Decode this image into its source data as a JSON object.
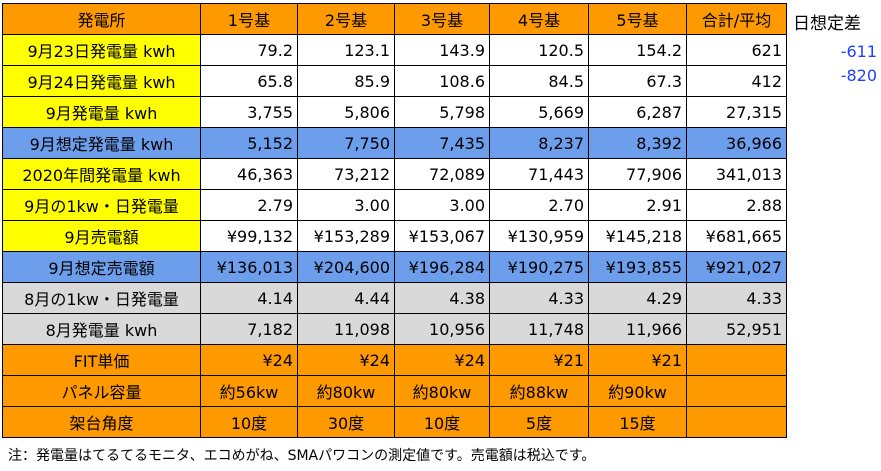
{
  "header": {
    "label": "発電所",
    "units": [
      "1号基",
      "2号基",
      "3号基",
      "4号基",
      "5号基"
    ],
    "total": "合計/平均"
  },
  "rows": [
    {
      "label": "9月23日発電量 kwh",
      "values": [
        "79.2",
        "123.1",
        "143.9",
        "120.5",
        "154.2"
      ],
      "total": "621"
    },
    {
      "label": "9月24日発電量 kwh",
      "values": [
        "65.8",
        "85.9",
        "108.6",
        "84.5",
        "67.3"
      ],
      "total": "412"
    },
    {
      "label": "9月発電量 kwh",
      "values": [
        "3,755",
        "5,806",
        "5,798",
        "5,669",
        "6,287"
      ],
      "total": "27,315"
    },
    {
      "label": "9月想定発電量 kwh",
      "values": [
        "5,152",
        "7,750",
        "7,435",
        "8,237",
        "8,392"
      ],
      "total": "36,966"
    },
    {
      "label": "2020年間発電量 kwh",
      "values": [
        "46,363",
        "73,212",
        "72,089",
        "71,443",
        "77,906"
      ],
      "total": "341,013"
    },
    {
      "label": "9月の1kw・日発電量",
      "values": [
        "2.79",
        "3.00",
        "3.00",
        "2.70",
        "2.91"
      ],
      "total": "2.88"
    },
    {
      "label": "9月売電額",
      "values": [
        "¥99,132",
        "¥153,289",
        "¥153,067",
        "¥130,959",
        "¥145,218"
      ],
      "total": "¥681,665"
    },
    {
      "label": "9月想定売電額",
      "values": [
        "¥136,013",
        "¥204,600",
        "¥196,284",
        "¥190,275",
        "¥193,855"
      ],
      "total": "¥921,027"
    },
    {
      "label": "8月の1kw・日発電量",
      "values": [
        "4.14",
        "4.44",
        "4.38",
        "4.33",
        "4.29"
      ],
      "total": "4.33"
    },
    {
      "label": "8月発電量 kwh",
      "values": [
        "7,182",
        "11,098",
        "10,956",
        "11,748",
        "11,966"
      ],
      "total": "52,951"
    },
    {
      "label": "FIT単価",
      "values": [
        "¥24",
        "¥24",
        "¥24",
        "¥21",
        "¥21"
      ],
      "total": ""
    },
    {
      "label": "パネル容量",
      "values": [
        "約56kw",
        "約80kw",
        "約80kw",
        "約88kw",
        "約90kw"
      ],
      "total": ""
    },
    {
      "label": "架台角度",
      "values": [
        "10度",
        "30度",
        "10度",
        "5度",
        "15度"
      ],
      "total": ""
    }
  ],
  "side": {
    "header": "日想定差",
    "values": [
      "-611",
      "-820"
    ]
  },
  "note": "注：発電量はてるてるモニタ、エコめがね、SMAパワコンの測定値です。売電額は税込です。",
  "colors": {
    "orange": "#FF9900",
    "yellow": "#FFFF00",
    "blue": "#6D9EEB",
    "gray": "#D9D9D9",
    "side_text": "#1F3FFF"
  }
}
